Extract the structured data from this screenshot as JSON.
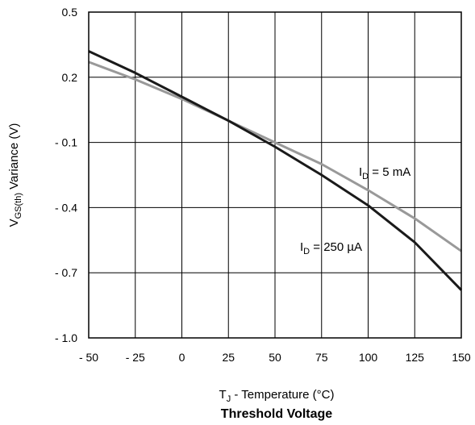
{
  "chart_data": {
    "type": "line",
    "title": "Threshold Voltage",
    "xlabel": {
      "main": "T",
      "sub": "J",
      "rest": " - Temperature (°C)"
    },
    "ylabel": {
      "main": "V",
      "sub": "GS(th)",
      "rest": " Variance (V)"
    },
    "xlim": [
      -50,
      150
    ],
    "ylim": [
      -1.0,
      0.5
    ],
    "x_ticks": [
      -50,
      -25,
      0,
      25,
      50,
      75,
      100,
      125,
      150
    ],
    "x_tick_labels": [
      "- 50",
      "- 25",
      "0",
      "25",
      "50",
      "75",
      "100",
      "125",
      "150"
    ],
    "y_ticks": [
      0.5,
      0.2,
      -0.1,
      -0.4,
      -0.7,
      -1.0
    ],
    "y_tick_labels": [
      "0.5",
      "0.2",
      "- 0.1",
      "- 0.4",
      "- 0.7",
      "- 1.0"
    ],
    "grid": true,
    "legend": "none",
    "series": [
      {
        "annotation": {
          "main": "I",
          "sub": "D",
          "rest": " = 5 mA"
        },
        "color": "#999999",
        "x": [
          -50,
          -25,
          0,
          25,
          50,
          75,
          100,
          125,
          150
        ],
        "y": [
          0.27,
          0.19,
          0.1,
          0.0,
          -0.1,
          -0.2,
          -0.32,
          -0.45,
          -0.6
        ]
      },
      {
        "annotation": {
          "main": "I",
          "sub": "D",
          "rest": " = 250 µA"
        },
        "color": "#1a1a1a",
        "x": [
          -50,
          -25,
          0,
          25,
          50,
          75,
          100,
          125,
          150
        ],
        "y": [
          0.32,
          0.22,
          0.11,
          0.0,
          -0.12,
          -0.25,
          -0.39,
          -0.56,
          -0.78
        ]
      }
    ]
  }
}
